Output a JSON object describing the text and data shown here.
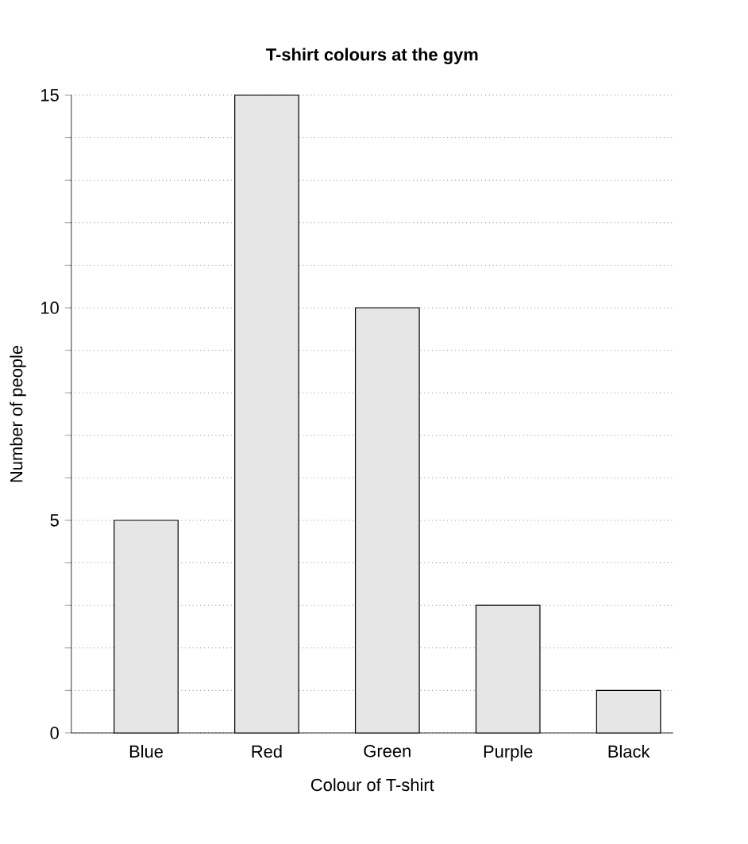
{
  "chart_data": {
    "type": "bar",
    "title": "T-shirt colours at the gym",
    "xlabel": "Colour of T-shirt",
    "ylabel": "Number of people",
    "categories": [
      "Blue",
      "Red",
      "Green",
      "Purple",
      "Black"
    ],
    "values": [
      5,
      15,
      10,
      3,
      1
    ],
    "color": "#e6e6e6",
    "ylim": [
      0,
      15
    ],
    "yticks": [
      0,
      {
        "value": 1,
        "label": null
      },
      {
        "value": 2,
        "label": null
      },
      {
        "value": 3,
        "label": null
      },
      {
        "value": 4,
        "label": null
      },
      5,
      {
        "value": 6,
        "label": null
      },
      {
        "value": 7,
        "label": null
      },
      {
        "value": 8,
        "label": null
      },
      {
        "value": 9,
        "label": null
      },
      10,
      {
        "value": 11,
        "label": null
      },
      {
        "value": 12,
        "label": null
      },
      {
        "value": 13,
        "label": null
      },
      {
        "value": 14,
        "label": null
      },
      15
    ],
    "grid": "y"
  }
}
